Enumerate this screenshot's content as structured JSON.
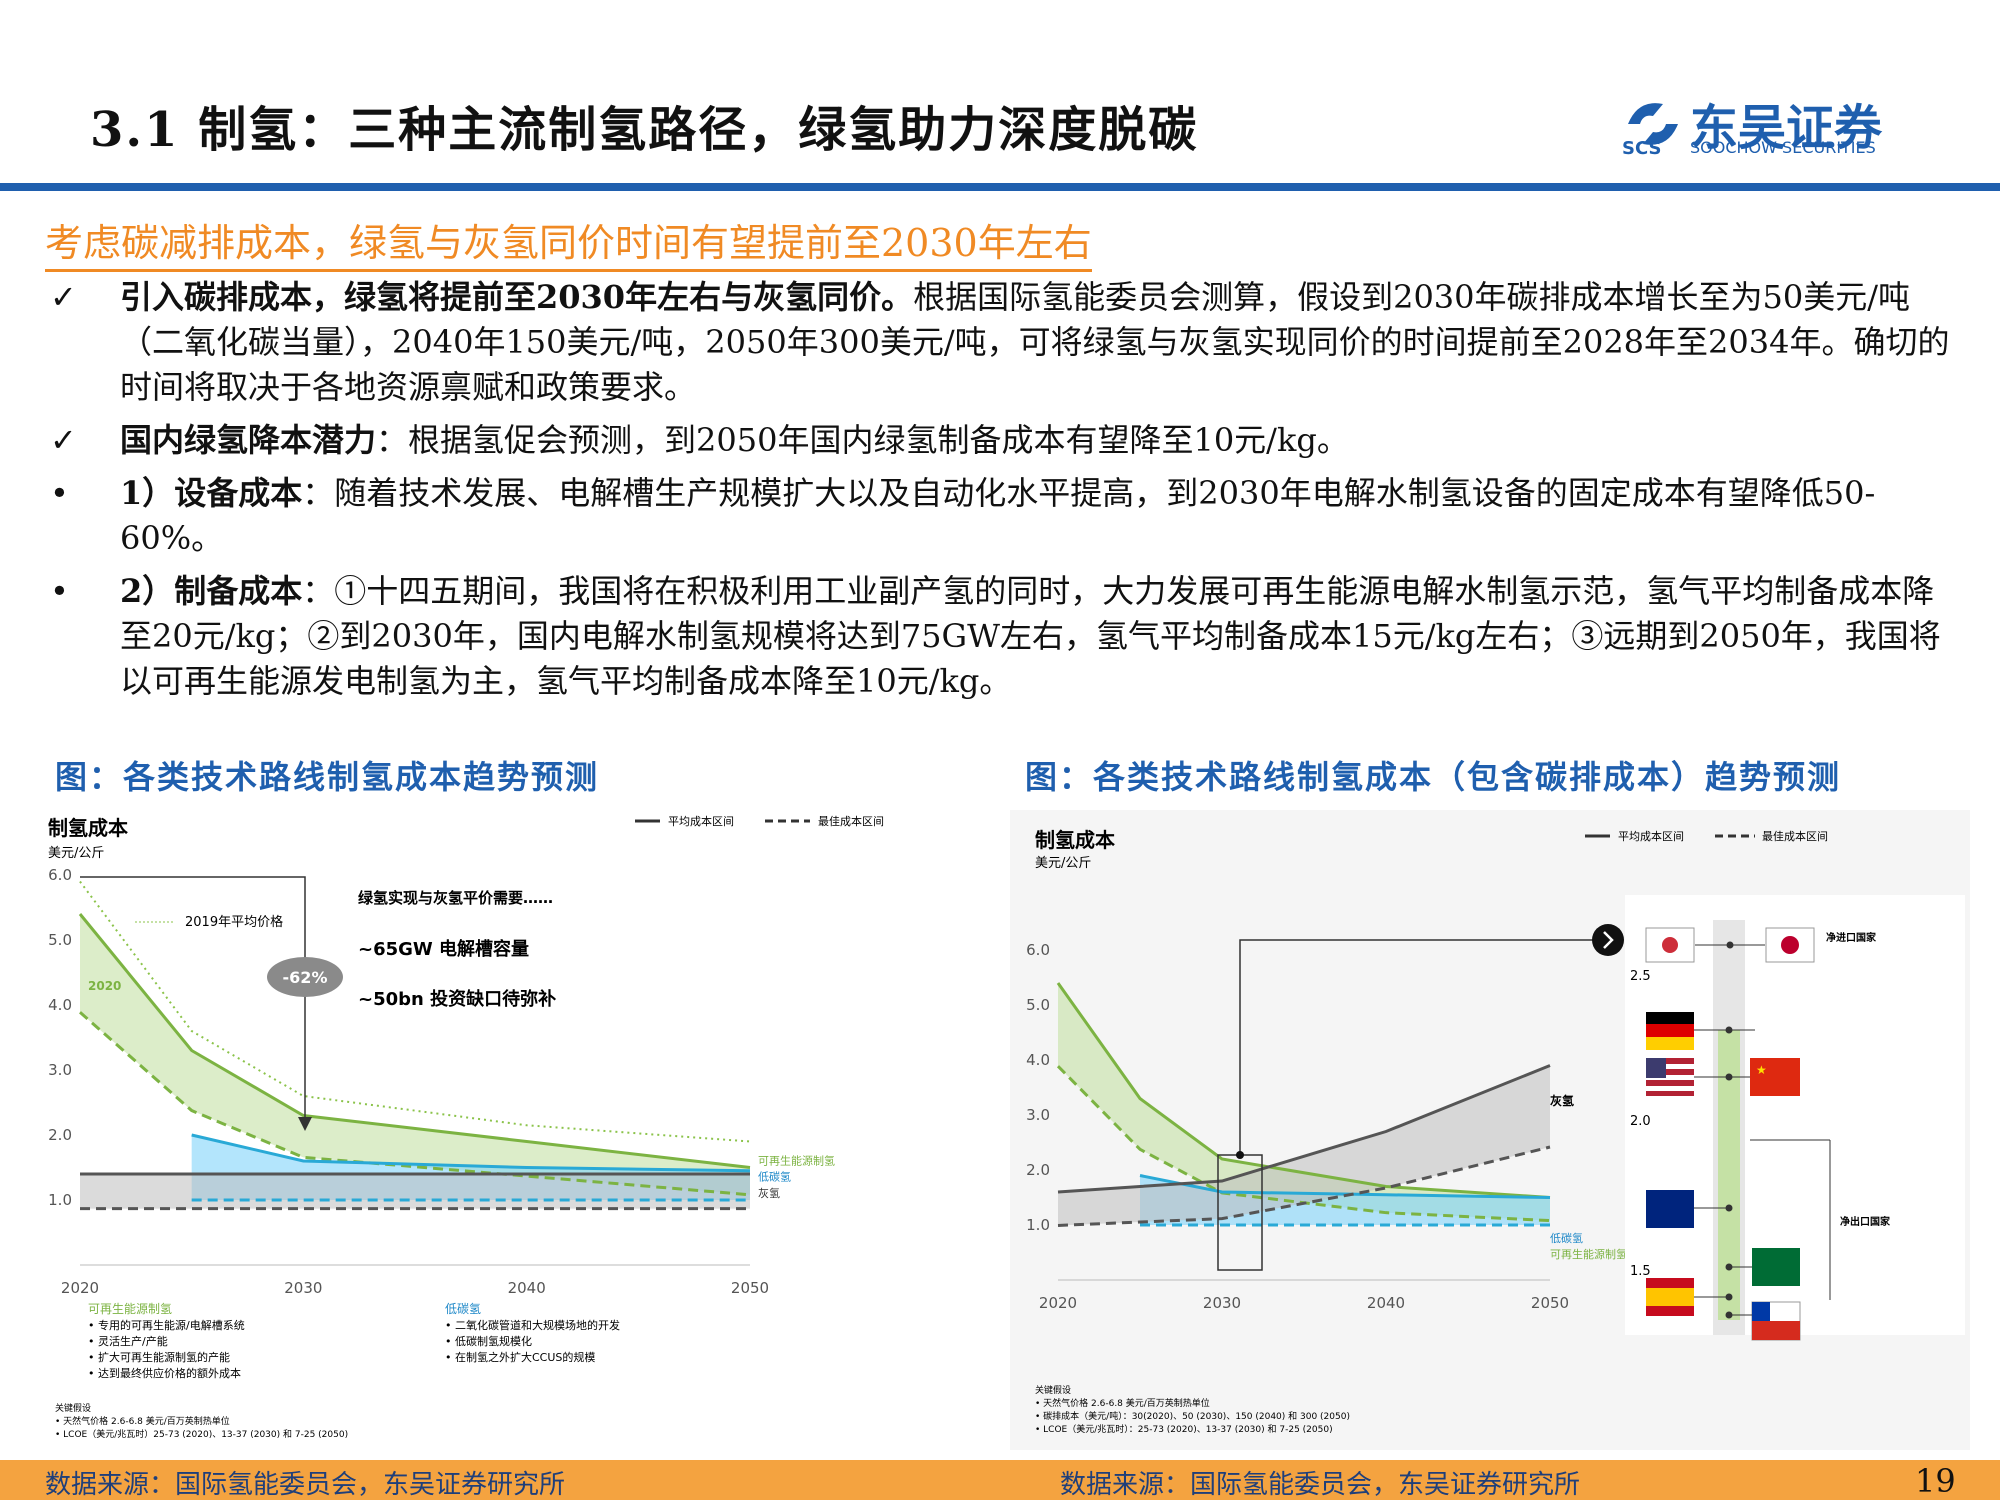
{
  "header": {
    "title": "3.1 制氢：三种主流制氢路径，绿氢助力深度脱碳",
    "logo_name": "东吴证券",
    "logo_en": "SOOCHOW SECURITIES",
    "logo_mark": "SCS"
  },
  "subheading": "考虑碳减排成本，绿氢与灰氢同价时间有望提前至2030年左右",
  "bullets": [
    {
      "marker": "✓",
      "bold": "引入碳排成本，绿氢将提前至2030年左右与灰氢同价。",
      "text": "根据国际氢能委员会测算，假设到2030年碳排成本增长至为50美元/吨（二氧化碳当量），2040年150美元/吨，2050年300美元/吨，可将绿氢与灰氢实现同价的时间提前至2028年至2034年。确切的时间将取决于各地资源禀赋和政策要求。"
    },
    {
      "marker": "✓",
      "bold": "国内绿氢降本潜力",
      "text": "：根据氢促会预测，到2050年国内绿氢制备成本有望降至10元/kg。"
    },
    {
      "marker": "•",
      "bold": "1）设备成本",
      "text": "：随着技术发展、电解槽生产规模扩大以及自动化水平提高，到2030年电解水制氢设备的固定成本有望降低50-60%。"
    },
    {
      "marker": "•",
      "bold": "2）制备成本",
      "text": "：①十四五期间，我国将在积极利用工业副产氢的同时，大力发展可再生能源电解水制氢示范，氢气平均制备成本降至20元/kg；②到2030年，国内电解水制氢规模将达到75GW左右，氢气平均制备成本15元/kg左右；③远期到2050年，我国将以可再生能源发电制氢为主，氢气平均制备成本降至10元/kg。"
    }
  ],
  "figure_left": {
    "title": "图：各类技术路线制氢成本趋势预测",
    "source": "数据来源：国际氢能委员会，东吴证券研究所"
  },
  "figure_right": {
    "title": "图：各类技术路线制氢成本（包含碳排成本）趋势预测",
    "source": "数据来源：国际氢能委员会，东吴证券研究所"
  },
  "page_number": "19",
  "chart_data": [
    {
      "type": "line",
      "title": "制氢成本",
      "ylabel": "美元/公斤",
      "x": [
        2020,
        2025,
        2030,
        2040,
        2050
      ],
      "ylim": [
        0,
        6
      ],
      "yticks": [
        "1.0",
        "2.0",
        "3.0",
        "4.0",
        "5.0",
        "6.0"
      ],
      "xticks": [
        "2020",
        "2030",
        "2040",
        "2050"
      ],
      "legend": [
        "平均成本区间",
        "最佳成本区间"
      ],
      "series": [
        {
          "name": "可再生能源制氢",
          "values": [
            5.4,
            3.3,
            2.3,
            1.9,
            1.5
          ]
        },
        {
          "name": "低碳氢",
          "values": [
            null,
            2.0,
            1.6,
            1.5,
            1.45
          ]
        },
        {
          "name": "灰氢",
          "values": [
            1.4,
            1.4,
            1.4,
            1.4,
            1.4
          ]
        }
      ],
      "annotations": [
        "2019年平均价格",
        "2020",
        "-62%",
        "绿氢实现与灰氢平价需要……",
        "~65GW 电解槽容量",
        "~50bn 投资缺口待弥补"
      ],
      "notes_renewable": [
        "可再生能源制氢",
        "• 专用的可再生能源/电解槽系统",
        "• 灵活生产/产能",
        "• 扩大可再生能源制氢的产能",
        "• 达到最终供应价格的额外成本"
      ],
      "notes_lowcarbon": [
        "低碳氢",
        "• 二氧化碳管道和大规模场地的开发",
        "• 低碳制氢规模化",
        "• 在制氢之外扩大CCUS的规模"
      ],
      "assumptions": [
        "关键假设",
        "• 天然气价格 2.6-6.8 美元/百万英制热单位",
        "• LCOE（美元/兆瓦时）25-73 (2020)、13-37 (2030) 和 7-25 (2050)"
      ]
    },
    {
      "type": "line",
      "title": "制氢成本",
      "ylabel": "美元/公斤",
      "x": [
        2020,
        2025,
        2030,
        2040,
        2050
      ],
      "ylim": [
        0,
        6
      ],
      "yticks": [
        "1.0",
        "2.0",
        "3.0",
        "4.0",
        "5.0",
        "6.0"
      ],
      "xticks": [
        "2020",
        "2030",
        "2040",
        "2050"
      ],
      "legend": [
        "平均成本区间",
        "最佳成本区间"
      ],
      "series": [
        {
          "name": "可再生能源制氢",
          "values": [
            5.4,
            3.3,
            2.2,
            1.7,
            1.5
          ]
        },
        {
          "name": "低碳氢",
          "values": [
            null,
            1.9,
            1.6,
            1.55,
            1.5
          ]
        },
        {
          "name": "灰氢",
          "values": [
            1.6,
            1.7,
            1.8,
            2.7,
            3.9
          ]
        }
      ],
      "label_lowcarbon": "低碳氢",
      "label_renewable": "可再生能源制氢",
      "label_grey": "灰氢",
      "inset_scale": [
        "2.5",
        "2.0",
        "1.5"
      ],
      "inset_labels": [
        "净进口国家",
        "净出口国家"
      ],
      "assumptions": [
        "关键假设",
        "• 天然气价格 2.6-6.8 美元/百万英制热单位",
        "• 碳排成本（美元/吨）：30(2020)、50 (2030)、150 (2040) 和 300 (2050)",
        "• LCOE（美元/兆瓦时）：25-73 (2020)、13-37 (2030) 和 7-25 (2050)"
      ]
    }
  ]
}
